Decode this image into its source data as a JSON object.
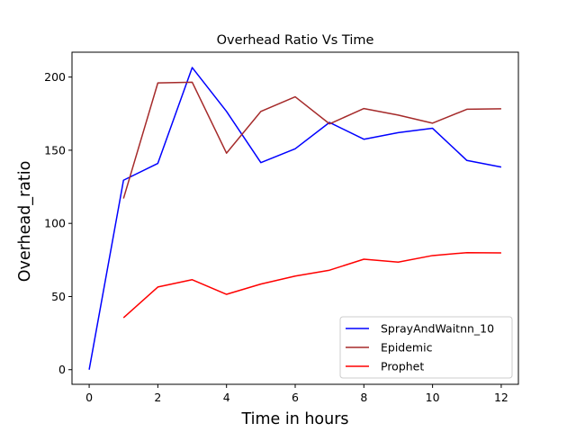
{
  "chart_data": {
    "type": "line",
    "title": "Overhead Ratio Vs Time",
    "xlabel": "Time in hours",
    "ylabel": "Overhead_ratio",
    "xlim": [
      -0.5,
      12.5
    ],
    "ylim": [
      -10,
      217
    ],
    "xticks": [
      0,
      2,
      4,
      6,
      8,
      10,
      12
    ],
    "yticks": [
      0,
      50,
      100,
      150,
      200
    ],
    "grid": false,
    "legend_position": "lower-right",
    "series": [
      {
        "name": "SprayAndWaitnn_10",
        "color": "#0000ff",
        "x": [
          0,
          1,
          2,
          3,
          4,
          5,
          6,
          7,
          8,
          9,
          10,
          11,
          12
        ],
        "y": [
          0,
          129.5,
          141,
          206.5,
          176.5,
          141.5,
          151,
          169,
          157.5,
          162,
          165,
          143,
          138.5
        ]
      },
      {
        "name": "Epidemic",
        "color": "#a52a2a",
        "x": [
          1,
          2,
          3,
          4,
          5,
          6,
          7,
          8,
          9,
          10,
          11,
          12
        ],
        "y": [
          117,
          196,
          196.5,
          148,
          176.5,
          186.5,
          168,
          178.5,
          174,
          168.5,
          178,
          178.3
        ]
      },
      {
        "name": "Prophet",
        "color": "#ff0000",
        "x": [
          1,
          2,
          3,
          4,
          5,
          6,
          7,
          8,
          9,
          10,
          11,
          12
        ],
        "y": [
          35.5,
          56.5,
          61.5,
          51.5,
          58.5,
          64,
          68,
          75.5,
          73.5,
          78,
          80,
          79.8
        ]
      }
    ]
  }
}
